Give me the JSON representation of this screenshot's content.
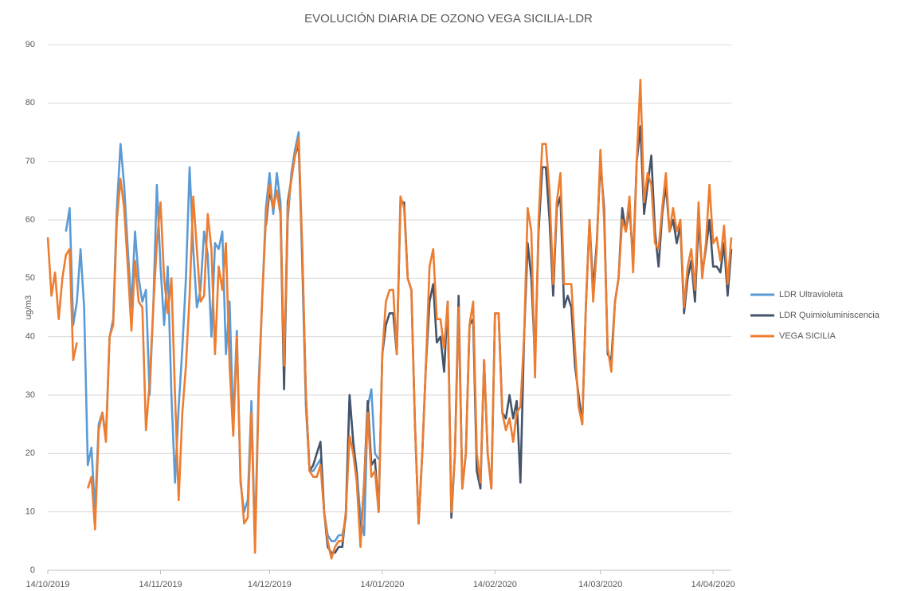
{
  "chart_data": {
    "type": "line",
    "title": "EVOLUCIÓN DIARIA DE OZONO VEGA SICILIA-LDR",
    "y_label": "ug/m3",
    "x": [
      "14/10/2019",
      "15/10/2019",
      "16/10/2019",
      "17/10/2019",
      "18/10/2019",
      "19/10/2019",
      "20/10/2019",
      "21/10/2019",
      "22/10/2019",
      "23/10/2019",
      "24/10/2019",
      "25/10/2019",
      "26/10/2019",
      "27/10/2019",
      "28/10/2019",
      "29/10/2019",
      "30/10/2019",
      "31/10/2019",
      "01/11/2019",
      "02/11/2019",
      "03/11/2019",
      "04/11/2019",
      "05/11/2019",
      "06/11/2019",
      "07/11/2019",
      "08/11/2019",
      "09/11/2019",
      "10/11/2019",
      "11/11/2019",
      "12/11/2019",
      "13/11/2019",
      "14/11/2019",
      "15/11/2019",
      "16/11/2019",
      "17/11/2019",
      "18/11/2019",
      "19/11/2019",
      "20/11/2019",
      "21/11/2019",
      "22/11/2019",
      "23/11/2019",
      "24/11/2019",
      "25/11/2019",
      "26/11/2019",
      "27/11/2019",
      "28/11/2019",
      "29/11/2019",
      "30/11/2019",
      "01/12/2019",
      "02/12/2019",
      "03/12/2019",
      "04/12/2019",
      "05/12/2019",
      "06/12/2019",
      "07/12/2019",
      "08/12/2019",
      "09/12/2019",
      "10/12/2019",
      "11/12/2019",
      "12/12/2019",
      "13/12/2019",
      "14/12/2019",
      "15/12/2019",
      "16/12/2019",
      "17/12/2019",
      "18/12/2019",
      "19/12/2019",
      "20/12/2019",
      "21/12/2019",
      "22/12/2019",
      "23/12/2019",
      "24/12/2019",
      "25/12/2019",
      "26/12/2019",
      "27/12/2019",
      "28/12/2019",
      "29/12/2019",
      "30/12/2019",
      "31/12/2019",
      "01/01/2020",
      "02/01/2020",
      "03/01/2020",
      "04/01/2020",
      "05/01/2020",
      "06/01/2020",
      "07/01/2020",
      "08/01/2020",
      "09/01/2020",
      "10/01/2020",
      "11/01/2020",
      "12/01/2020",
      "13/01/2020",
      "14/01/2020",
      "15/01/2020",
      "16/01/2020",
      "17/01/2020",
      "18/01/2020",
      "19/01/2020",
      "20/01/2020",
      "21/01/2020",
      "22/01/2020",
      "23/01/2020",
      "24/01/2020",
      "25/01/2020",
      "26/01/2020",
      "27/01/2020",
      "28/01/2020",
      "29/01/2020",
      "30/01/2020",
      "31/01/2020",
      "01/02/2020",
      "02/02/2020",
      "03/02/2020",
      "04/02/2020",
      "05/02/2020",
      "06/02/2020",
      "07/02/2020",
      "08/02/2020",
      "09/02/2020",
      "10/02/2020",
      "11/02/2020",
      "12/02/2020",
      "13/02/2020",
      "14/02/2020",
      "15/02/2020",
      "16/02/2020",
      "17/02/2020",
      "18/02/2020",
      "19/02/2020",
      "20/02/2020",
      "21/02/2020",
      "22/02/2020",
      "23/02/2020",
      "24/02/2020",
      "25/02/2020",
      "26/02/2020",
      "27/02/2020",
      "28/02/2020",
      "29/02/2020",
      "01/03/2020",
      "02/03/2020",
      "03/03/2020",
      "04/03/2020",
      "05/03/2020",
      "06/03/2020",
      "07/03/2020",
      "08/03/2020",
      "09/03/2020",
      "10/03/2020",
      "11/03/2020",
      "12/03/2020",
      "13/03/2020",
      "14/03/2020",
      "15/03/2020",
      "16/03/2020",
      "17/03/2020",
      "18/03/2020",
      "19/03/2020",
      "20/03/2020",
      "21/03/2020",
      "22/03/2020",
      "23/03/2020",
      "24/03/2020",
      "25/03/2020",
      "26/03/2020",
      "27/03/2020",
      "28/03/2020",
      "29/03/2020",
      "30/03/2020",
      "31/03/2020",
      "01/04/2020",
      "02/04/2020",
      "03/04/2020",
      "04/04/2020",
      "05/04/2020",
      "06/04/2020",
      "07/04/2020",
      "08/04/2020",
      "09/04/2020",
      "10/04/2020",
      "11/04/2020",
      "12/04/2020",
      "13/04/2020",
      "14/04/2020",
      "15/04/2020",
      "16/04/2020",
      "17/04/2020",
      "18/04/2020",
      "19/04/2020"
    ],
    "series": [
      {
        "name": "LDR Ultravioleta",
        "color": "#5b9bd5",
        "values": [
          null,
          null,
          null,
          null,
          null,
          58,
          62,
          42,
          46,
          55,
          45,
          18,
          21,
          10,
          25,
          27,
          23,
          40,
          43,
          62,
          73,
          66,
          55,
          45,
          58,
          50,
          46,
          48,
          30,
          45,
          66,
          52,
          42,
          52,
          30,
          15,
          28,
          38,
          50,
          69,
          55,
          45,
          48,
          58,
          54,
          40,
          56,
          55,
          58,
          37,
          46,
          25,
          41,
          15,
          10,
          12,
          29,
          5,
          32,
          47,
          62,
          68,
          61,
          68,
          63,
          33,
          60,
          68,
          72,
          75,
          52,
          28,
          17,
          17,
          18,
          19,
          10,
          6,
          5,
          5,
          6,
          6,
          9,
          30,
          22,
          17,
          9,
          6,
          28,
          31,
          20,
          19,
          null,
          null,
          null,
          null,
          null,
          null,
          null,
          null,
          null,
          null,
          null,
          null,
          null,
          null,
          null,
          null,
          null,
          null,
          null,
          null,
          null,
          null,
          null,
          null,
          null,
          null,
          null,
          null,
          null,
          null,
          null,
          null,
          null,
          null,
          null,
          null,
          null,
          null,
          null,
          null,
          null,
          null,
          null,
          null,
          null,
          null,
          null,
          null,
          null,
          null,
          null,
          null,
          null,
          null,
          null,
          null,
          null,
          null,
          null,
          null,
          null,
          null,
          null,
          null,
          null,
          null,
          null,
          null,
          null,
          null,
          null,
          null,
          null,
          null,
          null,
          null,
          null,
          null,
          null,
          null,
          null,
          null,
          null,
          null,
          null,
          null,
          null,
          null,
          null,
          null,
          null,
          null,
          null,
          null,
          null,
          null,
          null
        ]
      },
      {
        "name": "LDR Quimioluminiscencia",
        "color": "#44546a",
        "values": [
          null,
          null,
          null,
          null,
          null,
          null,
          null,
          null,
          null,
          null,
          null,
          null,
          null,
          null,
          null,
          null,
          null,
          null,
          null,
          null,
          null,
          null,
          null,
          null,
          null,
          null,
          null,
          null,
          null,
          null,
          null,
          null,
          null,
          null,
          null,
          null,
          null,
          null,
          null,
          null,
          null,
          null,
          null,
          null,
          null,
          null,
          null,
          null,
          null,
          null,
          null,
          null,
          null,
          null,
          null,
          null,
          null,
          null,
          null,
          null,
          59,
          65,
          62,
          65,
          61,
          31,
          63,
          67,
          71,
          73,
          54,
          30,
          17,
          18,
          20,
          22,
          10,
          4,
          3,
          3,
          4,
          4,
          10,
          30,
          22,
          16,
          5,
          15,
          29,
          18,
          19,
          10,
          37,
          42,
          44,
          44,
          37,
          63,
          63,
          50,
          48,
          25,
          8,
          20,
          35,
          46,
          49,
          39,
          40,
          34,
          46,
          9,
          20,
          47,
          14,
          20,
          42,
          43,
          17,
          14,
          36,
          20,
          14,
          44,
          44,
          27,
          26,
          30,
          26,
          29,
          15,
          40,
          56,
          50,
          36,
          58,
          69,
          69,
          60,
          47,
          62,
          64,
          45,
          47,
          45,
          35,
          30,
          25,
          45,
          60,
          48,
          56,
          70,
          62,
          37,
          36,
          46,
          50,
          62,
          58,
          62,
          53,
          70,
          76,
          61,
          66,
          71,
          58,
          52,
          61,
          66,
          58,
          60,
          56,
          59,
          44,
          50,
          53,
          46,
          60,
          51,
          55,
          60,
          52,
          52,
          51,
          56,
          47,
          55
        ]
      },
      {
        "name": "VEGA SICILIA",
        "color": "#ed7d31",
        "values": [
          57,
          47,
          51,
          43,
          50,
          54,
          55,
          36,
          39,
          null,
          null,
          14,
          16,
          7,
          24,
          27,
          22,
          40,
          42,
          60,
          67,
          62,
          52,
          41,
          53,
          46,
          45,
          24,
          32,
          45,
          56,
          63,
          50,
          44,
          50,
          30,
          12,
          27,
          35,
          47,
          64,
          55,
          46,
          47,
          61,
          55,
          37,
          52,
          48,
          56,
          35,
          23,
          40,
          16,
          8,
          9,
          27,
          3,
          30,
          47,
          60,
          66,
          62,
          65,
          61,
          35,
          62,
          67,
          71,
          74,
          55,
          30,
          17,
          16,
          16,
          18,
          10,
          5,
          2,
          4,
          5,
          5,
          10,
          23,
          20,
          15,
          4,
          15,
          27,
          16,
          17,
          10,
          37,
          46,
          48,
          48,
          37,
          64,
          62,
          50,
          48,
          25,
          8,
          20,
          35,
          52,
          55,
          43,
          43,
          38,
          46,
          10,
          20,
          45,
          14,
          20,
          42,
          46,
          20,
          15,
          36,
          20,
          14,
          44,
          44,
          27,
          24,
          26,
          22,
          27,
          28,
          40,
          62,
          58,
          33,
          60,
          73,
          73,
          65,
          49,
          63,
          68,
          49,
          49,
          49,
          38,
          28,
          25,
          45,
          60,
          46,
          55,
          72,
          60,
          38,
          34,
          46,
          50,
          60,
          58,
          64,
          51,
          70,
          84,
          63,
          68,
          66,
          56,
          55,
          62,
          68,
          58,
          62,
          58,
          60,
          45,
          52,
          55,
          48,
          63,
          50,
          56,
          66,
          56,
          57,
          53,
          59,
          49,
          57
        ]
      }
    ],
    "xlim": [
      "14/10/2019",
      "19/04/2020"
    ],
    "xticks": [
      "14/10/2019",
      "14/11/2019",
      "14/12/2019",
      "14/01/2020",
      "14/02/2020",
      "14/03/2020",
      "14/04/2020"
    ],
    "ylim": [
      0,
      90
    ],
    "yticks": [
      0,
      10,
      20,
      30,
      40,
      50,
      60,
      70,
      80,
      90
    ],
    "grid": true,
    "legend": "right"
  }
}
